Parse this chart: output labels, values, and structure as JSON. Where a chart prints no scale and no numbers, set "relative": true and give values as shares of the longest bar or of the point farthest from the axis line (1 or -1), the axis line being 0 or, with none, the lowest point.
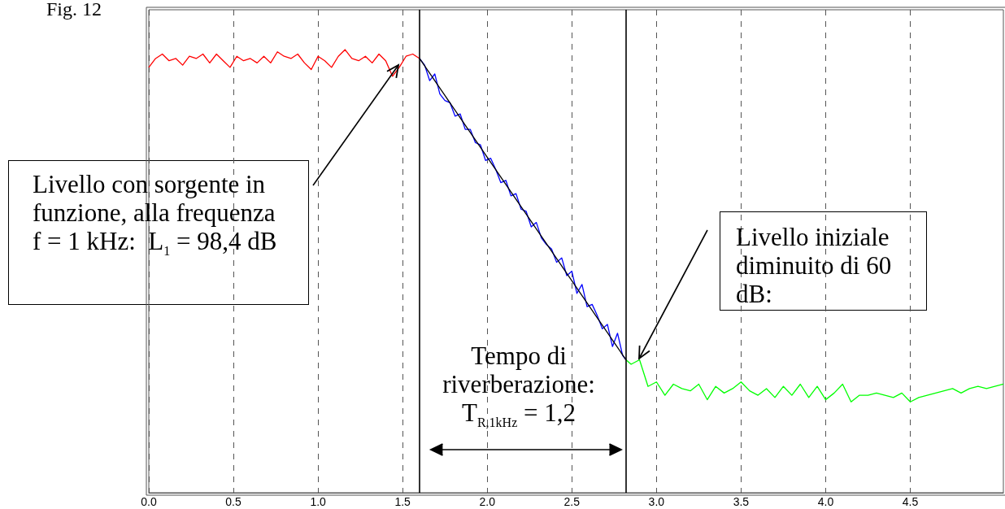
{
  "chart_data": {
    "type": "line",
    "title": "Fig. 12",
    "relative": true,
    "grid": "x",
    "marker": "none",
    "line_style": "solid",
    "xlim": [
      0,
      5.05
    ],
    "xticks": [
      {
        "value": 0,
        "label": "0.0"
      },
      0.5,
      {
        "value": 1,
        "label": "1.0"
      },
      1.5,
      {
        "value": 2,
        "label": "2.0"
      },
      2.5,
      {
        "value": 3,
        "label": "3.0"
      },
      3.5,
      {
        "value": 4,
        "label": "4.0"
      },
      4.5
    ],
    "ref_lines": [
      {
        "axis": "x",
        "value": 1.6,
        "color": "#000000"
      },
      {
        "axis": "x",
        "value": 2.82,
        "color": "#000000"
      }
    ],
    "annotations": [
      "Livello con sorgente in funzione, alla frequenza f = 1 kHz:  L$_{1}$ = 98,4 dB",
      "Livello iniziale diminuito di 60 dB:",
      "Tempo di riverberazione: T$_{R,1kHz}$ = 1,2"
    ],
    "series": [
      {
        "color": "#ff0000",
        "x": [
          0,
          0.04,
          0.08,
          0.12,
          0.16,
          0.2,
          0.24,
          0.28,
          0.32,
          0.36,
          0.4,
          0.44,
          0.48,
          0.52,
          0.56,
          0.6,
          0.64,
          0.68,
          0.72,
          0.76,
          0.8,
          0.84,
          0.88,
          0.92,
          0.96,
          1,
          1.04,
          1.08,
          1.12,
          1.16,
          1.2,
          1.24,
          1.28,
          1.32,
          1.36,
          1.4,
          1.44,
          1.48,
          1.52,
          1.56,
          1.6
        ],
        "values": [
          0.96,
          0.98,
          0.99,
          0.975,
          0.98,
          0.965,
          0.985,
          0.98,
          0.99,
          0.97,
          0.99,
          0.975,
          0.96,
          0.985,
          0.975,
          0.98,
          0.97,
          0.985,
          0.97,
          0.995,
          0.985,
          0.98,
          0.99,
          0.97,
          0.955,
          0.985,
          0.975,
          0.96,
          0.985,
          1.0,
          0.98,
          0.975,
          0.985,
          0.97,
          0.99,
          0.975,
          0.94,
          0.96,
          0.985,
          0.99,
          0.98
        ]
      },
      {
        "color": "#0000ff",
        "x": [
          1.6,
          1.63,
          1.66,
          1.69,
          1.72,
          1.75,
          1.78,
          1.81,
          1.84,
          1.87,
          1.9,
          1.93,
          1.96,
          1.99,
          2.02,
          2.05,
          2.08,
          2.11,
          2.14,
          2.17,
          2.2,
          2.23,
          2.26,
          2.29,
          2.32,
          2.35,
          2.38,
          2.41,
          2.44,
          2.47,
          2.5,
          2.53,
          2.56,
          2.59,
          2.62,
          2.65,
          2.68,
          2.71,
          2.74,
          2.77,
          2.8,
          2.82
        ],
        "values": [
          0.98,
          0.965,
          0.93,
          0.945,
          0.9,
          0.885,
          0.88,
          0.85,
          0.855,
          0.82,
          0.82,
          0.79,
          0.785,
          0.75,
          0.755,
          0.73,
          0.7,
          0.705,
          0.67,
          0.675,
          0.64,
          0.635,
          0.6,
          0.61,
          0.575,
          0.56,
          0.55,
          0.52,
          0.53,
          0.49,
          0.5,
          0.45,
          0.47,
          0.42,
          0.425,
          0.4,
          0.37,
          0.38,
          0.33,
          0.36,
          0.31,
          0.3
        ]
      },
      {
        "color": "#00ff00",
        "x": [
          2.82,
          2.85,
          2.9,
          2.95,
          3,
          3.05,
          3.1,
          3.15,
          3.2,
          3.25,
          3.3,
          3.35,
          3.4,
          3.45,
          3.5,
          3.55,
          3.6,
          3.65,
          3.7,
          3.75,
          3.8,
          3.85,
          3.9,
          3.95,
          4,
          4.05,
          4.1,
          4.15,
          4.2,
          4.25,
          4.3,
          4.35,
          4.4,
          4.45,
          4.5,
          4.55,
          4.6,
          4.65,
          4.7,
          4.75,
          4.8,
          4.85,
          4.9,
          4.95,
          5,
          5.05
        ],
        "values": [
          0.3,
          0.29,
          0.3,
          0.24,
          0.25,
          0.22,
          0.245,
          0.235,
          0.23,
          0.245,
          0.21,
          0.24,
          0.225,
          0.235,
          0.25,
          0.23,
          0.22,
          0.235,
          0.215,
          0.24,
          0.22,
          0.245,
          0.215,
          0.24,
          0.21,
          0.225,
          0.245,
          0.205,
          0.22,
          0.22,
          0.225,
          0.22,
          0.215,
          0.225,
          0.205,
          0.215,
          0.22,
          0.225,
          0.23,
          0.235,
          0.225,
          0.235,
          0.24,
          0.235,
          0.24,
          0.245
        ]
      },
      {
        "color": "#000000",
        "x": [
          1.6,
          2.82
        ],
        "values": [
          0.98,
          0.3
        ]
      }
    ]
  }
}
